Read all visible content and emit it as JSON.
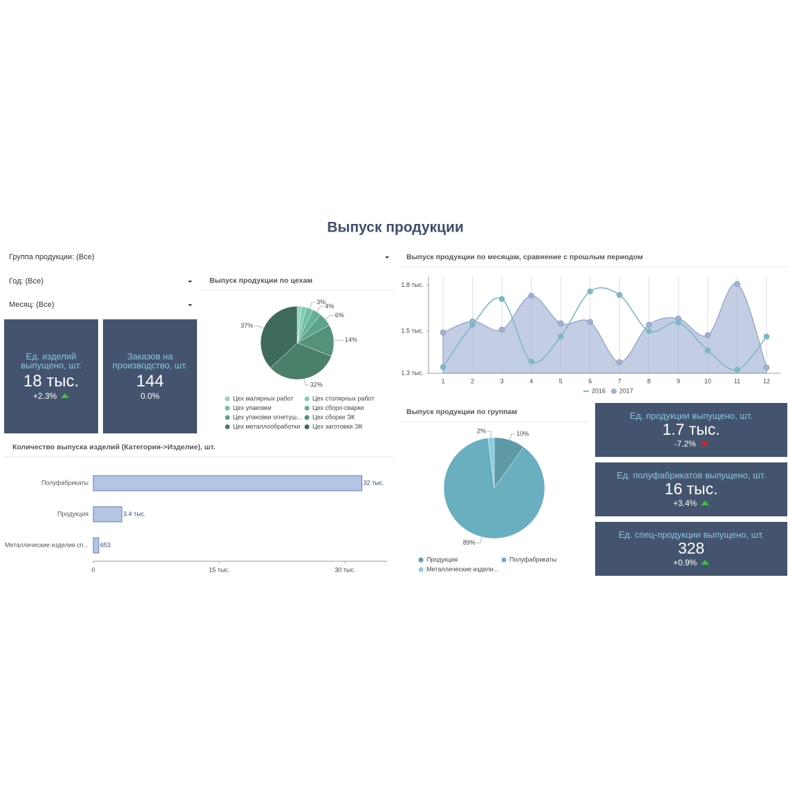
{
  "title": "Выпуск продукции",
  "filters": [
    "Группа продукции: (Все)",
    "Год: (Все)",
    "Месяц: (Все)"
  ],
  "kpis": [
    {
      "label": "Ед. изделий выпущено, шт.",
      "value": "18 тыс.",
      "delta": "+2.3%",
      "trend": "up"
    },
    {
      "label": "Заказов на производство, шт.",
      "value": "144",
      "delta": "0.0%"
    },
    {
      "label": "Ед. продукции выпущено, шт.",
      "value": "1.7 тыс.",
      "delta": "-7.2%",
      "trend": "down"
    },
    {
      "label": "Ед. полуфабрикатов выпущено, шт.",
      "value": "16 тыс.",
      "delta": "+3.4%",
      "trend": "up"
    },
    {
      "label": "Ед. спец-продукции выпущено, шт.",
      "value": "328",
      "delta": "+0.9%",
      "trend": "up"
    }
  ],
  "shops": {
    "type": "pie",
    "title": "Выпуск продукции по цехам",
    "categories": [
      "Цех малярных работ",
      "Цех столярных работ",
      "Цех упаковки",
      "Цех сборо-сварки",
      "Цех упаковки огнетуш...",
      "Цех сборки ЭК",
      "Цех металлообработки",
      "Цех заготовки ЭК"
    ],
    "values": [
      2,
      2,
      3,
      4,
      6,
      14,
      32,
      37
    ],
    "value_labels": [
      null,
      null,
      "3%",
      "4%",
      "6%",
      "14%",
      "32%",
      "37%"
    ],
    "colors": [
      "#8fd6bd",
      "#80ccb1",
      "#72c0a4",
      "#66b297",
      "#5ca48a",
      "#54927a",
      "#4a7f6a",
      "#3e6b59"
    ]
  },
  "monthly": {
    "type": "line",
    "title": "Выпуск продукции по месяцам, сравнение с прошлым периодом",
    "categories": [
      "1",
      "2",
      "3",
      "4",
      "5",
      "6",
      "7",
      "8",
      "9",
      "10",
      "11",
      "12"
    ],
    "series": [
      {
        "name": "2016",
        "color": "#7db8c3",
        "style": "line",
        "values": [
          1335,
          1576,
          1722,
          1367,
          1509,
          1765,
          1745,
          1540,
          1588,
          1430,
          1320,
          1509
        ]
      },
      {
        "name": "2017",
        "color": "#a3b2d4",
        "style": "area",
        "values": [
          1532,
          1595,
          1548,
          1741,
          1584,
          1592,
          1363,
          1576,
          1611,
          1517,
          1808,
          1332
        ]
      }
    ],
    "ylim": [
      1300,
      1850
    ],
    "yticks": [
      {
        "value": 1300,
        "label": "1.3 тыс."
      },
      {
        "value": 1540,
        "label": "1.5 тыс."
      },
      {
        "value": 1800,
        "label": "1.8 тыс."
      }
    ],
    "grid": true
  },
  "groups": {
    "type": "pie",
    "title": "Выпуск продукции по группам",
    "categories": [
      "Продукция",
      "Полуфабрикаты",
      "Металлические издели..."
    ],
    "values": [
      10,
      89,
      2
    ],
    "value_labels": [
      "10%",
      "89%",
      "2%"
    ],
    "colors": [
      "#5e9aa5",
      "#6aafc0",
      "#88cde0"
    ]
  },
  "items": {
    "type": "bar",
    "orientation": "horizontal",
    "title": "Количество выпуска изделий (Категория->Изделие), шт.",
    "categories": [
      "Полуфабрикаты",
      "Продукция",
      "Металлические изделия сп..."
    ],
    "values": [
      32000,
      3400,
      653
    ],
    "value_labels": [
      "32 тыс.",
      "3.4 тыс.",
      "653"
    ],
    "color": "#b3c5e3",
    "xlim": [
      0,
      35000
    ],
    "xticks": [
      0,
      {
        "value": 15000,
        "label": "15 тыс."
      },
      {
        "value": 30000,
        "label": "30 тыс."
      }
    ]
  }
}
